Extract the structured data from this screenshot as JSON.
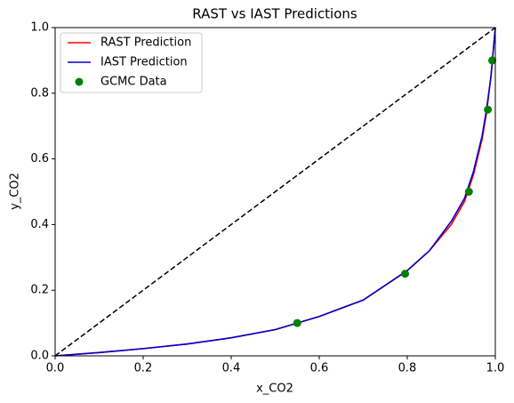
{
  "chart_data": {
    "type": "line",
    "title": "RAST vs IAST Predictions",
    "x_label": "x_CO2",
    "y_label": "y_CO2",
    "xlim": [
      0,
      1
    ],
    "ylim": [
      0,
      1
    ],
    "xticks": [
      {
        "value": 0,
        "label": "0.0"
      },
      0.2,
      0.4,
      0.6,
      0.8,
      {
        "value": 1,
        "label": "1.0"
      }
    ],
    "yticks": [
      {
        "value": 0,
        "label": "0.0"
      },
      0.2,
      0.4,
      0.6,
      0.8,
      {
        "value": 1,
        "label": "1.0"
      }
    ],
    "legend": "upper left",
    "series": [
      {
        "name": "RAST Prediction",
        "color": "#ff0000",
        "type": "line",
        "x": [
          0,
          0.1,
          0.2,
          0.3,
          0.4,
          0.5,
          0.6,
          0.7,
          0.8,
          0.85,
          0.9,
          0.93,
          0.95,
          0.97,
          0.98,
          0.99,
          1
        ],
        "values": [
          0,
          0.01,
          0.022,
          0.036,
          0.055,
          0.08,
          0.12,
          0.17,
          0.26,
          0.32,
          0.4,
          0.47,
          0.55,
          0.66,
          0.74,
          0.85,
          1
        ]
      },
      {
        "name": "IAST Prediction",
        "color": "#0000cc",
        "type": "line",
        "x": [
          0,
          0.1,
          0.2,
          0.3,
          0.4,
          0.5,
          0.6,
          0.7,
          0.8,
          0.85,
          0.9,
          0.93,
          0.95,
          0.97,
          0.98,
          0.99,
          1
        ],
        "values": [
          0,
          0.01,
          0.022,
          0.036,
          0.055,
          0.08,
          0.12,
          0.17,
          0.26,
          0.32,
          0.41,
          0.48,
          0.56,
          0.67,
          0.75,
          0.85,
          1
        ]
      },
      {
        "name": "GCMC Data",
        "color": "#008000",
        "type": "scatter",
        "x": [
          0.55,
          0.795,
          0.94,
          0.983,
          0.993
        ],
        "values": [
          0.1,
          0.25,
          0.5,
          0.75,
          0.9
        ]
      }
    ]
  }
}
